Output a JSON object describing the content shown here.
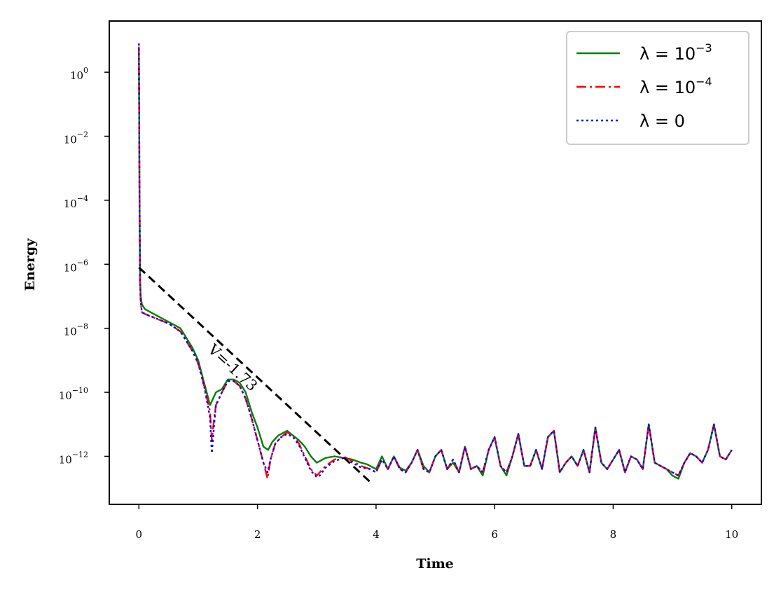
{
  "chart_data": {
    "type": "line",
    "title": "",
    "xlabel": "Time",
    "ylabel": "Energy",
    "xlim": [
      -0.5,
      10.5
    ],
    "ylim": [
      -13.5,
      1.6
    ],
    "y_scale": "log",
    "grid": false,
    "legend_position": "top-right",
    "x_ticks": [
      0,
      2,
      4,
      6,
      8,
      10
    ],
    "y_ticks": [
      {
        "exp": 0,
        "base": "10",
        "sup": "0"
      },
      {
        "exp": -2,
        "base": "10",
        "sup": "−2"
      },
      {
        "exp": -4,
        "base": "10",
        "sup": "−4"
      },
      {
        "exp": -6,
        "base": "10",
        "sup": "−6"
      },
      {
        "exp": -8,
        "base": "10",
        "sup": "−8"
      },
      {
        "exp": -10,
        "base": "10",
        "sup": "−10"
      },
      {
        "exp": -12,
        "base": "10",
        "sup": "−12"
      }
    ],
    "series": [
      {
        "name": "λ = 10⁻³",
        "legend_label": {
          "prefix": "λ = 10",
          "sup": "−3"
        },
        "color": "#008000",
        "dash": "solid",
        "x": [
          0,
          0.01,
          0.02,
          0.03,
          0.05,
          0.1,
          0.3,
          0.5,
          0.7,
          0.9,
          1.0,
          1.1,
          1.2,
          1.25,
          1.3,
          1.4,
          1.5,
          1.6,
          1.7,
          1.8,
          1.9,
          2.0,
          2.1,
          2.18,
          2.25,
          2.35,
          2.5,
          2.6,
          2.7,
          2.8,
          2.9,
          3.0,
          3.05,
          3.15,
          3.3,
          3.45,
          3.6,
          3.75,
          3.85,
          3.9,
          4.0,
          4.1,
          4.2,
          4.3,
          4.4,
          4.5,
          4.6,
          4.7,
          4.8,
          4.9,
          5.0,
          5.1,
          5.2,
          5.3,
          5.4,
          5.5,
          5.6,
          5.7,
          5.8,
          5.9,
          6.0,
          6.1,
          6.2,
          6.3,
          6.4,
          6.5,
          6.6,
          6.7,
          6.8,
          6.9,
          7.0,
          7.1,
          7.2,
          7.3,
          7.4,
          7.5,
          7.6,
          7.7,
          7.8,
          7.9,
          8.0,
          8.1,
          8.2,
          8.3,
          8.4,
          8.5,
          8.6,
          8.7,
          8.8,
          8.9,
          9.0,
          9.1,
          9.2,
          9.3,
          9.4,
          9.5,
          9.6,
          9.7,
          9.8,
          9.9,
          10.0
        ],
        "y": [
          0.8,
          -4,
          -6.5,
          -7.0,
          -7.25,
          -7.4,
          -7.6,
          -7.8,
          -8.0,
          -8.6,
          -9.0,
          -9.7,
          -10.4,
          -10.2,
          -10.0,
          -9.9,
          -9.6,
          -9.6,
          -9.7,
          -10.0,
          -10.6,
          -11.1,
          -11.7,
          -11.8,
          -11.55,
          -11.35,
          -11.2,
          -11.35,
          -11.5,
          -11.7,
          -12.0,
          -12.2,
          -12.15,
          -12.05,
          -12.0,
          -12.05,
          -12.1,
          -12.2,
          -12.25,
          -12.3,
          -12.4,
          -12.0,
          -12.4,
          -12.0,
          -12.35,
          -12.45,
          -12.2,
          -11.8,
          -12.3,
          -12.5,
          -12.0,
          -11.8,
          -12.4,
          -12.2,
          -12.5,
          -11.7,
          -12.4,
          -12.3,
          -12.6,
          -11.8,
          -11.4,
          -12.3,
          -12.6,
          -12.0,
          -11.3,
          -12.3,
          -12.3,
          -11.8,
          -12.4,
          -11.4,
          -11.2,
          -12.5,
          -12.2,
          -12.0,
          -12.3,
          -11.8,
          -12.5,
          -11.1,
          -12.2,
          -12.4,
          -12.1,
          -11.8,
          -12.5,
          -12.0,
          -12.1,
          -12.4,
          -11.0,
          -12.2,
          -12.3,
          -12.4,
          -12.6,
          -12.7,
          -12.2,
          -11.9,
          -12.0,
          -12.2,
          -11.8,
          -11.0,
          -12.0,
          -12.1,
          -11.8
        ]
      },
      {
        "name": "λ = 10⁻⁴",
        "legend_label": {
          "prefix": "λ = 10",
          "sup": "−4"
        },
        "color": "#ff0000",
        "dash": "dashdot",
        "x": [
          0,
          0.01,
          0.02,
          0.03,
          0.05,
          0.1,
          0.3,
          0.5,
          0.7,
          0.9,
          1.0,
          1.1,
          1.2,
          1.23,
          1.27,
          1.3,
          1.4,
          1.5,
          1.6,
          1.7,
          1.8,
          1.9,
          2.0,
          2.1,
          2.17,
          2.22,
          2.3,
          2.4,
          2.5,
          2.6,
          2.7,
          2.8,
          2.9,
          3.0,
          3.05,
          3.15,
          3.3,
          3.45,
          3.6,
          3.75,
          3.9,
          4.0,
          4.1,
          4.2,
          4.3,
          4.4,
          4.5,
          4.6,
          4.7,
          4.8,
          4.9,
          5.0,
          5.1,
          5.2,
          5.3,
          5.4,
          5.5,
          5.6,
          5.7,
          5.8,
          5.9,
          6.0,
          6.1,
          6.2,
          6.3,
          6.4,
          6.5,
          6.6,
          6.7,
          6.8,
          6.9,
          7.0,
          7.1,
          7.2,
          7.3,
          7.4,
          7.5,
          7.6,
          7.7,
          7.8,
          7.9,
          8.0,
          8.1,
          8.2,
          8.3,
          8.4,
          8.5,
          8.6,
          8.7,
          8.8,
          8.9,
          9.0,
          9.1,
          9.2,
          9.3,
          9.4,
          9.5,
          9.6,
          9.7,
          9.8,
          9.9,
          10.0
        ],
        "y": [
          0.8,
          -4,
          -6.5,
          -7.2,
          -7.5,
          -7.55,
          -7.7,
          -7.85,
          -8.1,
          -8.7,
          -9.1,
          -9.8,
          -10.6,
          -11.5,
          -10.8,
          -10.4,
          -10.0,
          -9.65,
          -9.65,
          -9.8,
          -10.2,
          -10.8,
          -11.5,
          -12.2,
          -12.7,
          -12.1,
          -11.6,
          -11.4,
          -11.25,
          -11.35,
          -11.6,
          -12.0,
          -12.4,
          -12.6,
          -12.5,
          -12.3,
          -12.1,
          -12.0,
          -12.15,
          -12.3,
          -12.4,
          -12.5,
          -12.1,
          -12.4,
          -12.0,
          -12.4,
          -12.5,
          -12.2,
          -11.8,
          -12.4,
          -12.5,
          -12.0,
          -11.8,
          -12.4,
          -12.1,
          -12.5,
          -11.7,
          -12.4,
          -12.3,
          -12.5,
          -11.8,
          -11.4,
          -12.3,
          -12.5,
          -12.0,
          -11.3,
          -12.3,
          -12.3,
          -11.8,
          -12.4,
          -11.4,
          -11.2,
          -12.5,
          -12.2,
          -12.0,
          -12.3,
          -11.8,
          -12.5,
          -11.1,
          -12.2,
          -12.4,
          -12.1,
          -11.8,
          -12.5,
          -12.0,
          -12.1,
          -12.4,
          -11.0,
          -12.2,
          -12.3,
          -12.4,
          -12.5,
          -12.6,
          -12.2,
          -11.9,
          -12.0,
          -12.2,
          -11.8,
          -11.0,
          -12.0,
          -12.1,
          -11.8
        ]
      },
      {
        "name": "λ = 0",
        "legend_label": {
          "prefix": "λ = 0",
          "sup": ""
        },
        "color": "#0000ff",
        "dash": "dotted",
        "x": [
          0,
          0.01,
          0.02,
          0.03,
          0.05,
          0.1,
          0.3,
          0.5,
          0.7,
          0.9,
          1.0,
          1.1,
          1.2,
          1.23,
          1.27,
          1.3,
          1.4,
          1.5,
          1.6,
          1.7,
          1.8,
          1.9,
          2.0,
          2.1,
          2.17,
          2.22,
          2.3,
          2.4,
          2.5,
          2.6,
          2.7,
          2.8,
          2.9,
          3.0,
          3.05,
          3.15,
          3.3,
          3.45,
          3.6,
          3.75,
          3.9,
          4.0,
          4.1,
          4.2,
          4.3,
          4.4,
          4.5,
          4.6,
          4.7,
          4.8,
          4.9,
          5.0,
          5.1,
          5.2,
          5.3,
          5.4,
          5.5,
          5.6,
          5.7,
          5.8,
          5.9,
          6.0,
          6.1,
          6.2,
          6.3,
          6.4,
          6.5,
          6.6,
          6.7,
          6.8,
          6.9,
          7.0,
          7.1,
          7.2,
          7.3,
          7.4,
          7.5,
          7.6,
          7.7,
          7.8,
          7.9,
          8.0,
          8.1,
          8.2,
          8.3,
          8.4,
          8.5,
          8.6,
          8.7,
          8.8,
          8.9,
          9.0,
          9.1,
          9.2,
          9.3,
          9.4,
          9.5,
          9.6,
          9.7,
          9.8,
          9.9,
          10.0
        ],
        "y": [
          0.9,
          -4,
          -6.5,
          -7.2,
          -7.5,
          -7.55,
          -7.7,
          -7.85,
          -8.1,
          -8.7,
          -9.1,
          -9.8,
          -10.8,
          -11.9,
          -11.0,
          -10.4,
          -10.0,
          -9.65,
          -9.65,
          -9.8,
          -10.2,
          -10.8,
          -11.5,
          -12.2,
          -12.5,
          -12.1,
          -11.6,
          -11.4,
          -11.3,
          -11.4,
          -11.65,
          -12.05,
          -12.45,
          -12.65,
          -12.6,
          -12.35,
          -12.15,
          -12.05,
          -12.2,
          -12.35,
          -12.4,
          -12.5,
          -12.1,
          -12.4,
          -12.0,
          -12.4,
          -12.5,
          -12.2,
          -11.8,
          -12.4,
          -12.5,
          -12.0,
          -11.8,
          -12.4,
          -12.1,
          -12.5,
          -11.7,
          -12.4,
          -12.3,
          -12.5,
          -11.8,
          -11.4,
          -12.3,
          -12.5,
          -12.0,
          -11.3,
          -12.3,
          -12.3,
          -11.8,
          -12.4,
          -11.4,
          -11.2,
          -12.5,
          -12.2,
          -12.0,
          -12.3,
          -11.8,
          -12.5,
          -11.1,
          -12.2,
          -12.4,
          -12.1,
          -11.8,
          -12.5,
          -12.0,
          -12.1,
          -12.4,
          -11.0,
          -12.2,
          -12.3,
          -12.4,
          -12.5,
          -12.6,
          -12.2,
          -11.9,
          -12.0,
          -12.2,
          -11.8,
          -11.0,
          -12.0,
          -12.1,
          -11.8
        ]
      }
    ],
    "annotation": {
      "text": "V=-1.73",
      "line_x": [
        0,
        3.9
      ],
      "line_y": [
        -6.1,
        -12.8
      ],
      "label_x": 1.15,
      "label_y": -8.7,
      "color": "#000000"
    }
  }
}
